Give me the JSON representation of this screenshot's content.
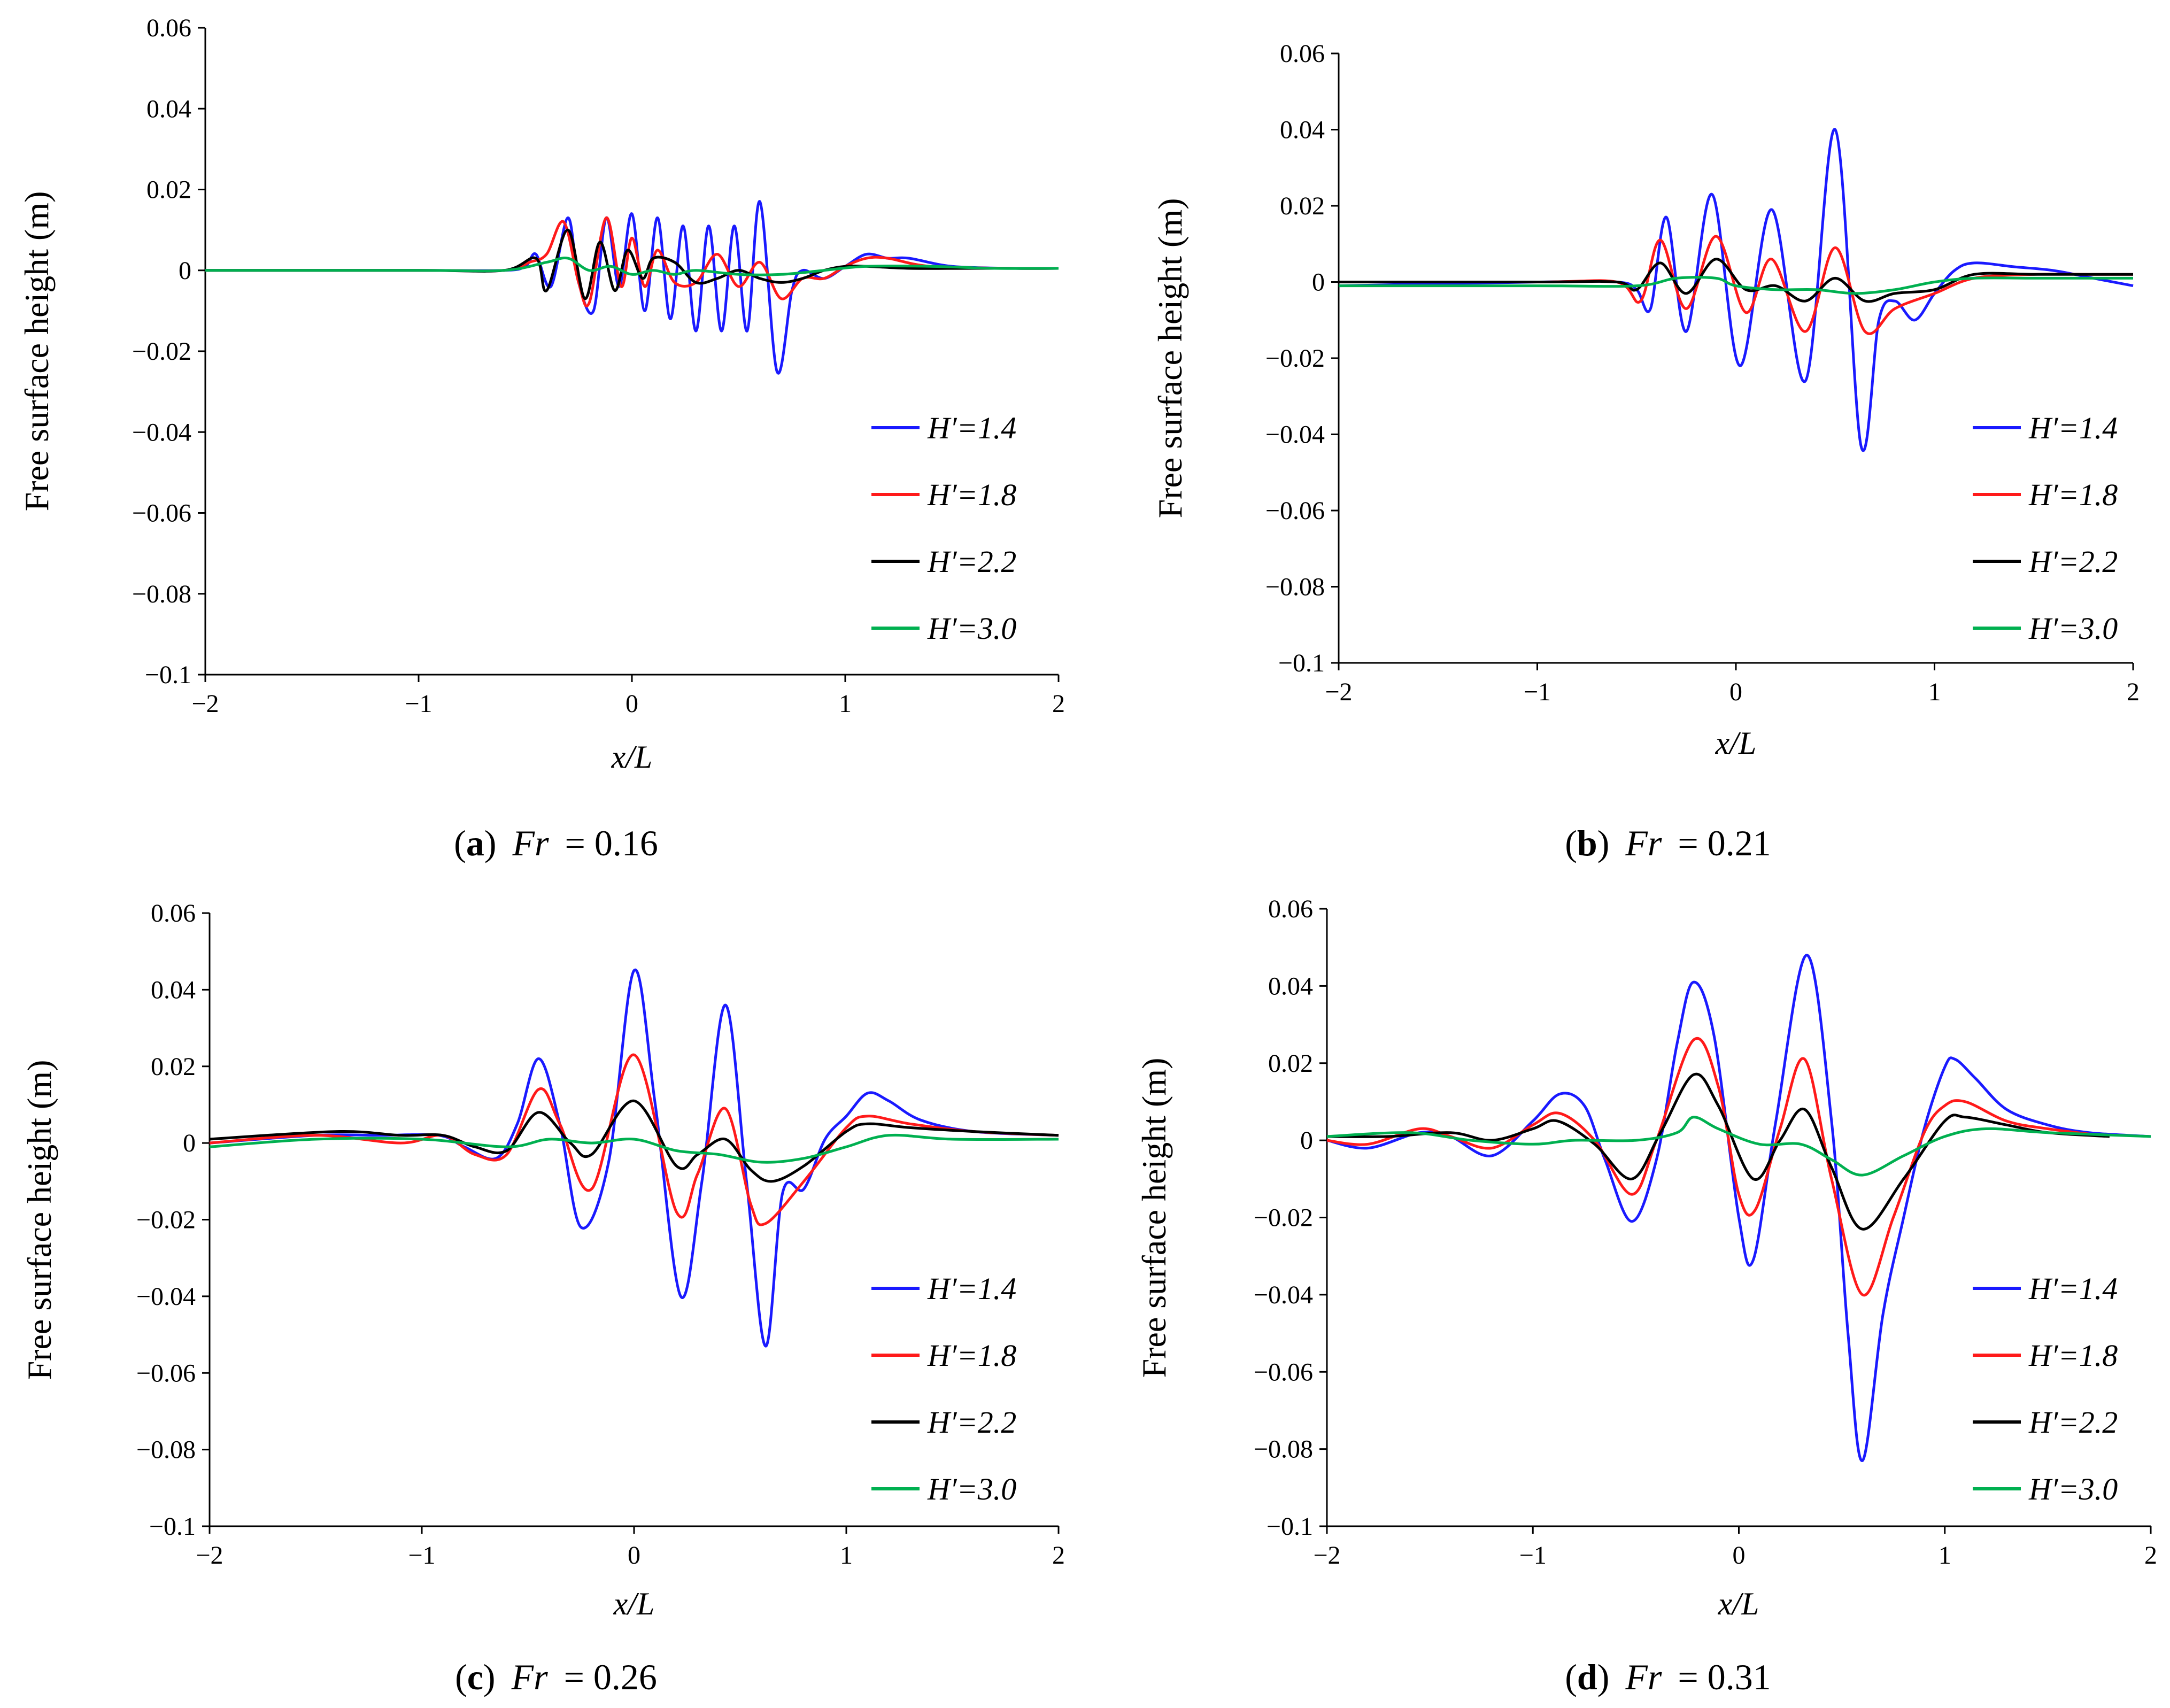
{
  "figure": {
    "series_labels": [
      "H′=1.4",
      "H′=1.8",
      "H′=2.2",
      "H′=3.0"
    ],
    "series_colors": [
      "#1a1aff",
      "#ff1a1a",
      "#000000",
      "#00b050"
    ]
  },
  "chart_data": [
    {
      "type": "line",
      "panel": "a",
      "caption": {
        "open": "(",
        "letter": "a",
        "close": ")",
        "var": "Fr",
        "eq": "= 0.16"
      },
      "ylabel": "Free surface height (m)",
      "xlabel": "x/L",
      "xlim": [
        -2,
        2
      ],
      "ylim": [
        -0.1,
        0.06
      ],
      "xticks": [
        -2,
        -1,
        0,
        1,
        2
      ],
      "yticks": [
        -0.1,
        -0.08,
        -0.06,
        -0.04,
        -0.02,
        0,
        0.02,
        0.04,
        0.06
      ],
      "xtick_labels": [
        "−2",
        "−1",
        "0",
        "1",
        "2"
      ],
      "ytick_labels": [
        "−0.1",
        "−0.08",
        "−0.06",
        "−0.04",
        "−0.02",
        "0",
        "0.02",
        "0.04",
        "0.06"
      ],
      "series": [
        {
          "name": "H′=1.4",
          "color": "#1a1aff",
          "x": [
            -2,
            -1,
            -0.6,
            -0.5,
            -0.45,
            -0.38,
            -0.3,
            -0.25,
            -0.18,
            -0.12,
            -0.06,
            0,
            0.06,
            0.12,
            0.18,
            0.24,
            0.3,
            0.36,
            0.42,
            0.48,
            0.54,
            0.6,
            0.68,
            0.75,
            0.8,
            0.9,
            1.0,
            1.1,
            1.2,
            1.3,
            1.5,
            1.8,
            2
          ],
          "y": [
            0,
            0,
            0,
            0.001,
            0.004,
            -0.004,
            0.013,
            -0.003,
            -0.01,
            0.013,
            -0.004,
            0.014,
            -0.01,
            0.013,
            -0.012,
            0.011,
            -0.015,
            0.011,
            -0.015,
            0.011,
            -0.015,
            0.017,
            -0.025,
            -0.005,
            0,
            -0.002,
            0.001,
            0.004,
            0.003,
            0.003,
            0.001,
            0.0005,
            0.0005
          ]
        },
        {
          "name": "H′=1.8",
          "color": "#ff1a1a",
          "x": [
            -2,
            -1,
            -0.6,
            -0.48,
            -0.4,
            -0.32,
            -0.25,
            -0.2,
            -0.12,
            -0.05,
            0,
            0.06,
            0.12,
            0.2,
            0.3,
            0.4,
            0.5,
            0.6,
            0.7,
            0.8,
            0.9,
            1.0,
            1.1,
            1.2,
            1.4,
            1.8,
            2
          ],
          "y": [
            0,
            0,
            0,
            0.002,
            0.004,
            0.012,
            -0.003,
            -0.008,
            0.013,
            -0.004,
            0.008,
            -0.004,
            0.005,
            -0.003,
            -0.003,
            0.004,
            -0.004,
            0.002,
            -0.007,
            -0.002,
            -0.002,
            0.001,
            0.003,
            0.003,
            0.001,
            0.0005,
            0.0005
          ]
        },
        {
          "name": "H′=2.2",
          "color": "#000000",
          "x": [
            -2,
            -1,
            -0.6,
            -0.45,
            -0.4,
            -0.3,
            -0.22,
            -0.15,
            -0.08,
            -0.02,
            0.05,
            0.1,
            0.2,
            0.3,
            0.4,
            0.5,
            0.6,
            0.7,
            0.8,
            0.9,
            1.0,
            1.1,
            1.3,
            1.6,
            2
          ],
          "y": [
            0,
            0,
            0,
            0.003,
            -0.005,
            0.01,
            -0.007,
            0.007,
            -0.005,
            0.005,
            -0.002,
            0.003,
            0.002,
            -0.003,
            -0.002,
            0,
            -0.002,
            -0.003,
            -0.002,
            0,
            0.001,
            0.001,
            0.0005,
            0.0005,
            0.0005
          ]
        },
        {
          "name": "H′=3.0",
          "color": "#00b050",
          "x": [
            -2,
            -1,
            -0.6,
            -0.4,
            -0.3,
            -0.2,
            -0.1,
            0,
            0.1,
            0.2,
            0.3,
            0.5,
            0.7,
            0.9,
            1.1,
            1.4,
            1.7,
            2
          ],
          "y": [
            0,
            0,
            0,
            0.002,
            0.003,
            0,
            0.001,
            -0.001,
            0,
            -0.001,
            0,
            -0.001,
            -0.001,
            0,
            0.001,
            0.001,
            0.0005,
            0.0005
          ]
        }
      ]
    },
    {
      "type": "line",
      "panel": "b",
      "caption": {
        "open": "(",
        "letter": "b",
        "close": ")",
        "var": "Fr",
        "eq": "= 0.21"
      },
      "ylabel": "Free surface height (m)",
      "xlabel": "x/L",
      "xlim": [
        -2,
        2
      ],
      "ylim": [
        -0.1,
        0.06
      ],
      "xticks": [
        -2,
        -1,
        0,
        1,
        2
      ],
      "yticks": [
        -0.1,
        -0.08,
        -0.06,
        -0.04,
        -0.02,
        0,
        0.02,
        0.04,
        0.06
      ],
      "xtick_labels": [
        "−2",
        "−1",
        "0",
        "1",
        "2"
      ],
      "ytick_labels": [
        "−0.1",
        "−0.08",
        "−0.06",
        "−0.04",
        "−0.02",
        "0",
        "0.02",
        "0.04",
        "0.06"
      ],
      "series": [
        {
          "name": "H′=1.4",
          "color": "#1a1aff",
          "x": [
            -2,
            -1,
            -0.6,
            -0.5,
            -0.43,
            -0.35,
            -0.25,
            -0.12,
            0.02,
            0.18,
            0.35,
            0.5,
            0.63,
            0.72,
            0.8,
            0.9,
            1.0,
            1.1,
            1.2,
            1.4,
            1.6,
            1.8,
            2
          ],
          "y": [
            -0.001,
            0,
            0,
            -0.002,
            -0.007,
            0.017,
            -0.013,
            0.023,
            -0.022,
            0.019,
            -0.026,
            0.04,
            -0.043,
            -0.01,
            -0.005,
            -0.01,
            -0.003,
            0.003,
            0.005,
            0.004,
            0.003,
            0.001,
            -0.001
          ]
        },
        {
          "name": "H′=1.8",
          "color": "#ff1a1a",
          "x": [
            -2,
            -1,
            -0.6,
            -0.48,
            -0.38,
            -0.25,
            -0.1,
            0.05,
            0.18,
            0.35,
            0.5,
            0.65,
            0.8,
            1.0,
            1.2,
            1.5,
            1.8,
            2
          ],
          "y": [
            0,
            0,
            0,
            -0.005,
            0.011,
            -0.007,
            0.012,
            -0.008,
            0.006,
            -0.013,
            0.009,
            -0.013,
            -0.007,
            -0.003,
            0.001,
            0.002,
            0.002,
            0.002
          ]
        },
        {
          "name": "H′=2.2",
          "color": "#000000",
          "x": [
            -2,
            -1,
            -0.6,
            -0.5,
            -0.38,
            -0.25,
            -0.1,
            0.05,
            0.2,
            0.35,
            0.5,
            0.65,
            0.8,
            1.0,
            1.2,
            1.5,
            1.8,
            2
          ],
          "y": [
            0,
            0,
            0,
            -0.002,
            0.005,
            -0.003,
            0.006,
            -0.002,
            -0.001,
            -0.005,
            0.001,
            -0.005,
            -0.003,
            -0.002,
            0.002,
            0.002,
            0.002,
            0.002
          ]
        },
        {
          "name": "H′=3.0",
          "color": "#00b050",
          "x": [
            -2,
            -1,
            -0.5,
            -0.3,
            -0.1,
            0,
            0.2,
            0.4,
            0.6,
            0.8,
            1.0,
            1.2,
            1.5,
            1.8,
            2
          ],
          "y": [
            -0.001,
            -0.001,
            -0.001,
            0.001,
            0.001,
            -0.001,
            -0.002,
            -0.002,
            -0.003,
            -0.002,
            0,
            0.001,
            0.001,
            0.001,
            0.001
          ]
        }
      ]
    },
    {
      "type": "line",
      "panel": "c",
      "caption": {
        "open": "(",
        "letter": "c",
        "close": ")",
        "var": "Fr",
        "eq": "= 0.26"
      },
      "ylabel": "Free surface height (m)",
      "xlabel": "x/L",
      "xlim": [
        -2,
        2
      ],
      "ylim": [
        -0.1,
        0.06
      ],
      "xticks": [
        -2,
        -1,
        0,
        1,
        2
      ],
      "yticks": [
        -0.1,
        -0.08,
        -0.06,
        -0.04,
        -0.02,
        0,
        0.02,
        0.04,
        0.06
      ],
      "xtick_labels": [
        "−2",
        "−1",
        "0",
        "1",
        "2"
      ],
      "ytick_labels": [
        "−0.1",
        "−0.08",
        "−0.06",
        "−0.04",
        "−0.02",
        "0",
        "0.02",
        "0.04",
        "0.06"
      ],
      "series": [
        {
          "name": "H′=1.4",
          "color": "#1a1aff",
          "x": [
            -2,
            -1.5,
            -1.2,
            -0.92,
            -0.8,
            -0.65,
            -0.55,
            -0.45,
            -0.35,
            -0.25,
            -0.12,
            0,
            0.1,
            0.22,
            0.32,
            0.43,
            0.53,
            0.62,
            0.7,
            0.8,
            0.9,
            1.0,
            1.1,
            1.2,
            1.35,
            1.6,
            2
          ],
          "y": [
            0,
            0.002,
            0.002,
            0.002,
            -0.001,
            -0.004,
            0.005,
            0.022,
            0.005,
            -0.022,
            -0.005,
            0.045,
            0.01,
            -0.04,
            -0.01,
            0.036,
            -0.01,
            -0.053,
            -0.013,
            -0.012,
            0.001,
            0.007,
            0.013,
            0.011,
            0.006,
            0.003,
            0.002
          ]
        },
        {
          "name": "H′=1.8",
          "color": "#ff1a1a",
          "x": [
            -2,
            -1.5,
            -1.1,
            -0.9,
            -0.75,
            -0.6,
            -0.45,
            -0.35,
            -0.2,
            0,
            0.2,
            0.3,
            0.43,
            0.55,
            0.62,
            0.8,
            1.0,
            1.1,
            1.3,
            1.6,
            2
          ],
          "y": [
            0,
            0.002,
            0,
            0.002,
            -0.003,
            -0.003,
            0.014,
            0.005,
            -0.012,
            0.023,
            -0.018,
            -0.008,
            0.009,
            -0.016,
            -0.021,
            -0.01,
            0.004,
            0.007,
            0.005,
            0.003,
            0.002
          ]
        },
        {
          "name": "H′=2.2",
          "color": "#000000",
          "x": [
            -2,
            -1.4,
            -1.1,
            -0.9,
            -0.75,
            -0.6,
            -0.45,
            -0.3,
            -0.2,
            0,
            0.2,
            0.3,
            0.43,
            0.55,
            0.65,
            0.8,
            1.0,
            1.1,
            1.3,
            1.6,
            2
          ],
          "y": [
            0.001,
            0.003,
            0.002,
            0.002,
            -0.001,
            -0.002,
            0.008,
            0,
            -0.003,
            0.011,
            -0.006,
            -0.003,
            0.001,
            -0.007,
            -0.01,
            -0.006,
            0.003,
            0.005,
            0.004,
            0.003,
            0.002
          ]
        },
        {
          "name": "H′=3.0",
          "color": "#00b050",
          "x": [
            -2,
            -1.5,
            -1.0,
            -0.6,
            -0.4,
            -0.2,
            0,
            0.2,
            0.4,
            0.6,
            0.8,
            1.0,
            1.2,
            1.5,
            2
          ],
          "y": [
            -0.001,
            0.001,
            0.001,
            -0.001,
            0.001,
            0,
            0.001,
            -0.002,
            -0.003,
            -0.005,
            -0.004,
            -0.001,
            0.002,
            0.001,
            0.001
          ]
        }
      ]
    },
    {
      "type": "line",
      "panel": "d",
      "caption": {
        "open": "(",
        "letter": "d",
        "close": ")",
        "var": "Fr",
        "eq": "= 0.31"
      },
      "ylabel": "Free surface height (m)",
      "xlabel": "x/L",
      "xlim": [
        -2,
        2
      ],
      "ylim": [
        -0.1,
        0.06
      ],
      "xticks": [
        -2,
        -1,
        0,
        1,
        2
      ],
      "yticks": [
        -0.1,
        -0.08,
        -0.06,
        -0.04,
        -0.02,
        0,
        0.02,
        0.04,
        0.06
      ],
      "xtick_labels": [
        "−2",
        "−1",
        "0",
        "1",
        "2"
      ],
      "ytick_labels": [
        "−0.1",
        "−0.08",
        "−0.06",
        "−0.04",
        "−0.02",
        "0",
        "0.02",
        "0.04",
        "0.06"
      ],
      "series": [
        {
          "name": "H′=1.4",
          "color": "#1a1aff",
          "x": [
            -2,
            -1.8,
            -1.55,
            -1.4,
            -1.2,
            -1.0,
            -0.87,
            -0.75,
            -0.65,
            -0.52,
            -0.4,
            -0.3,
            -0.22,
            -0.12,
            0,
            0.07,
            0.18,
            0.33,
            0.45,
            0.53,
            0.6,
            0.7,
            0.8,
            0.9,
            1.0,
            1.05,
            1.15,
            1.3,
            1.5,
            1.7,
            2
          ],
          "y": [
            0,
            -0.002,
            0.002,
            0.001,
            -0.004,
            0.005,
            0.012,
            0.009,
            -0.005,
            -0.021,
            -0.005,
            0.025,
            0.041,
            0.027,
            -0.02,
            -0.031,
            0.005,
            0.048,
            0.005,
            -0.05,
            -0.083,
            -0.045,
            -0.02,
            0.003,
            0.019,
            0.021,
            0.016,
            0.008,
            0.004,
            0.002,
            0.001
          ]
        },
        {
          "name": "H′=1.8",
          "color": "#ff1a1a",
          "x": [
            -2,
            -1.8,
            -1.55,
            -1.4,
            -1.2,
            -1.0,
            -0.87,
            -0.7,
            -0.52,
            -0.4,
            -0.22,
            -0.1,
            0,
            0.08,
            0.2,
            0.32,
            0.45,
            0.6,
            0.75,
            0.9,
            1.0,
            1.1,
            1.3,
            1.5,
            1.8
          ],
          "y": [
            0,
            -0.001,
            0.003,
            0.001,
            -0.002,
            0.004,
            0.007,
            0,
            -0.014,
            0,
            0.026,
            0.014,
            -0.014,
            -0.018,
            0.003,
            0.021,
            -0.01,
            -0.04,
            -0.02,
            0.002,
            0.009,
            0.01,
            0.005,
            0.003,
            0.001
          ]
        },
        {
          "name": "H′=2.2",
          "color": "#000000",
          "x": [
            -2,
            -1.7,
            -1.4,
            -1.2,
            -1.0,
            -0.88,
            -0.7,
            -0.52,
            -0.38,
            -0.22,
            -0.1,
            0.07,
            0.2,
            0.32,
            0.45,
            0.6,
            0.8,
            1.0,
            1.1,
            1.3,
            1.5,
            1.8
          ],
          "y": [
            0.001,
            0.001,
            0.002,
            0,
            0.003,
            0.005,
            -0.001,
            -0.01,
            0.002,
            0.017,
            0.009,
            -0.01,
            0,
            0.008,
            -0.007,
            -0.023,
            -0.01,
            0.005,
            0.006,
            0.004,
            0.002,
            0.001
          ]
        },
        {
          "name": "H′=3.0",
          "color": "#00b050",
          "x": [
            -2,
            -1.6,
            -1.3,
            -1.0,
            -0.8,
            -0.5,
            -0.3,
            -0.22,
            -0.1,
            0.1,
            0.3,
            0.45,
            0.6,
            0.8,
            1.0,
            1.2,
            1.5,
            2
          ],
          "y": [
            0.001,
            0.002,
            0,
            -0.001,
            0,
            0,
            0.002,
            0.006,
            0.003,
            -0.001,
            -0.001,
            -0.005,
            -0.009,
            -0.004,
            0.001,
            0.003,
            0.002,
            0.001
          ]
        }
      ]
    }
  ]
}
